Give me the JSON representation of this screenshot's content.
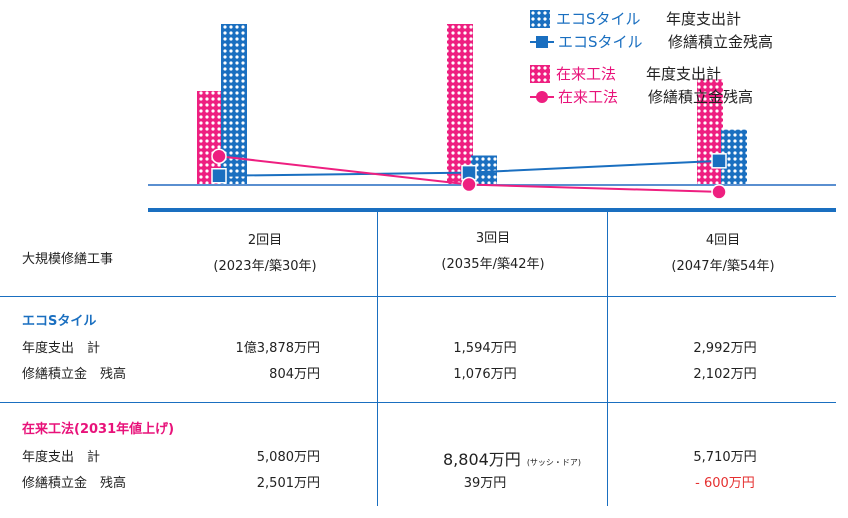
{
  "legend": {
    "eco_total": {
      "name": "エコSタイル",
      "metric": "年度支出計"
    },
    "eco_balance": {
      "name": "エコSタイル",
      "metric": "修繕積立金残高"
    },
    "trad_total": {
      "name": "在来工法",
      "metric": "年度支出計"
    },
    "trad_balance": {
      "name": "在来工法",
      "metric": "修繕積立金残高"
    }
  },
  "colors": {
    "eco": "#1a6fc0",
    "trad": "#ee1f80",
    "negative": "#e53030"
  },
  "chart_data": {
    "type": "bar",
    "categories": [
      "2回目",
      "3回目",
      "4回目"
    ],
    "series": [
      {
        "name": "エコSタイル 年度支出計",
        "kind": "bar",
        "values": [
          13878,
          1594,
          2992
        ]
      },
      {
        "name": "在来工法 年度支出計",
        "kind": "bar",
        "values": [
          5080,
          8804,
          5710
        ]
      },
      {
        "name": "エコSタイル 修繕積立金残高",
        "kind": "line",
        "values": [
          804,
          1076,
          2102
        ]
      },
      {
        "name": "在来工法 修繕積立金残高",
        "kind": "line",
        "values": [
          2501,
          39,
          -600
        ]
      }
    ],
    "unit": "万円",
    "grid": false,
    "legend_position": "top-right"
  },
  "table": {
    "row_header": "大規模修繕工事",
    "columns": [
      {
        "title": "2回目",
        "sub": "(2023年/築30年)"
      },
      {
        "title": "3回目",
        "sub": "(2035年/築42年)"
      },
      {
        "title": "4回目",
        "sub": "(2047年/築54年)"
      }
    ],
    "eco": {
      "title": "エコSタイル",
      "rows": [
        {
          "label": "年度支出　計",
          "values": [
            "1億3,878万円",
            "1,594万円",
            "2,992万円"
          ]
        },
        {
          "label": "修繕積立金　残高",
          "values": [
            "804万円",
            "1,076万円",
            "2,102万円"
          ]
        }
      ]
    },
    "trad": {
      "title": "在来工法(2031年値上げ)",
      "rows": [
        {
          "label": "年度支出　計",
          "values": [
            "5,080万円",
            "8,804万円",
            "5,710万円"
          ],
          "note": "(サッシ・ドア)"
        },
        {
          "label": "修繕積立金　残高",
          "values": [
            "2,501万円",
            "39万円",
            "- 600万円"
          ]
        }
      ]
    }
  }
}
